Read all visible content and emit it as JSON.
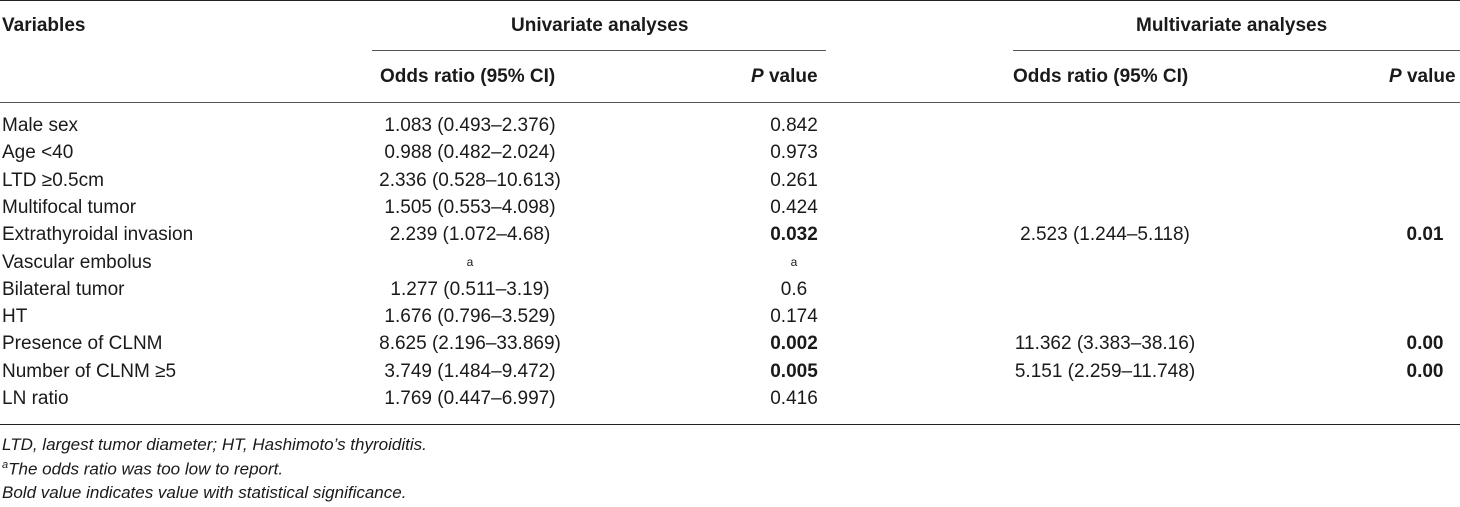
{
  "header": {
    "variables": "Variables",
    "univariate": "Univariate analyses",
    "multivariate": "Multivariate analyses",
    "or_label": "Odds ratio (95% CI)",
    "p_italic": "P",
    "p_rest": " value"
  },
  "rows": [
    {
      "label": "Male sex",
      "u_or": "1.083 (0.493–2.376)",
      "u_p": "0.842",
      "u_p_bold": false,
      "m_or": "",
      "m_p": ""
    },
    {
      "label": "Age <40",
      "u_or": "0.988 (0.482–2.024)",
      "u_p": "0.973",
      "u_p_bold": false,
      "m_or": "",
      "m_p": ""
    },
    {
      "label": "LTD ≥0.5cm",
      "u_or": "2.336 (0.528–10.613)",
      "u_p": "0.261",
      "u_p_bold": false,
      "m_or": "",
      "m_p": ""
    },
    {
      "label": "Multifocal tumor",
      "u_or": "1.505 (0.553–4.098)",
      "u_p": "0.424",
      "u_p_bold": false,
      "m_or": "",
      "m_p": ""
    },
    {
      "label": "Extrathyroidal invasion",
      "u_or": "2.239 (1.072–4.68)",
      "u_p": "0.032",
      "u_p_bold": true,
      "m_or": "2.523 (1.244–5.118)",
      "m_p": "0.01"
    },
    {
      "label": "Vascular embolus",
      "u_or": "a",
      "u_p": "a",
      "u_p_bold": false,
      "m_or": "",
      "m_p": ""
    },
    {
      "label": "Bilateral tumor",
      "u_or": "1.277 (0.511–3.19)",
      "u_p": "0.6",
      "u_p_bold": false,
      "m_or": "",
      "m_p": ""
    },
    {
      "label": "HT",
      "u_or": "1.676 (0.796–3.529)",
      "u_p": "0.174",
      "u_p_bold": false,
      "m_or": "",
      "m_p": ""
    },
    {
      "label": "Presence of CLNM",
      "u_or": "8.625 (2.196–33.869)",
      "u_p": "0.002",
      "u_p_bold": true,
      "m_or": "11.362 (3.383–38.16)",
      "m_p": "0.00"
    },
    {
      "label": "Number of CLNM ≥5",
      "u_or": "3.749 (1.484–9.472)",
      "u_p": "0.005",
      "u_p_bold": true,
      "m_or": "5.151 (2.259–11.748)",
      "m_p": "0.00"
    },
    {
      "label": "LN ratio",
      "u_or": "1.769 (0.447–6.997)",
      "u_p": "0.416",
      "u_p_bold": false,
      "m_or": "",
      "m_p": ""
    }
  ],
  "footnotes": {
    "abbrev": "LTD, largest tumor diameter; HT, Hashimoto’s thyroiditis.",
    "a_mark": "a",
    "a_text": "The odds ratio was too low to report.",
    "bold_note": "Bold value indicates value with statistical significance."
  }
}
